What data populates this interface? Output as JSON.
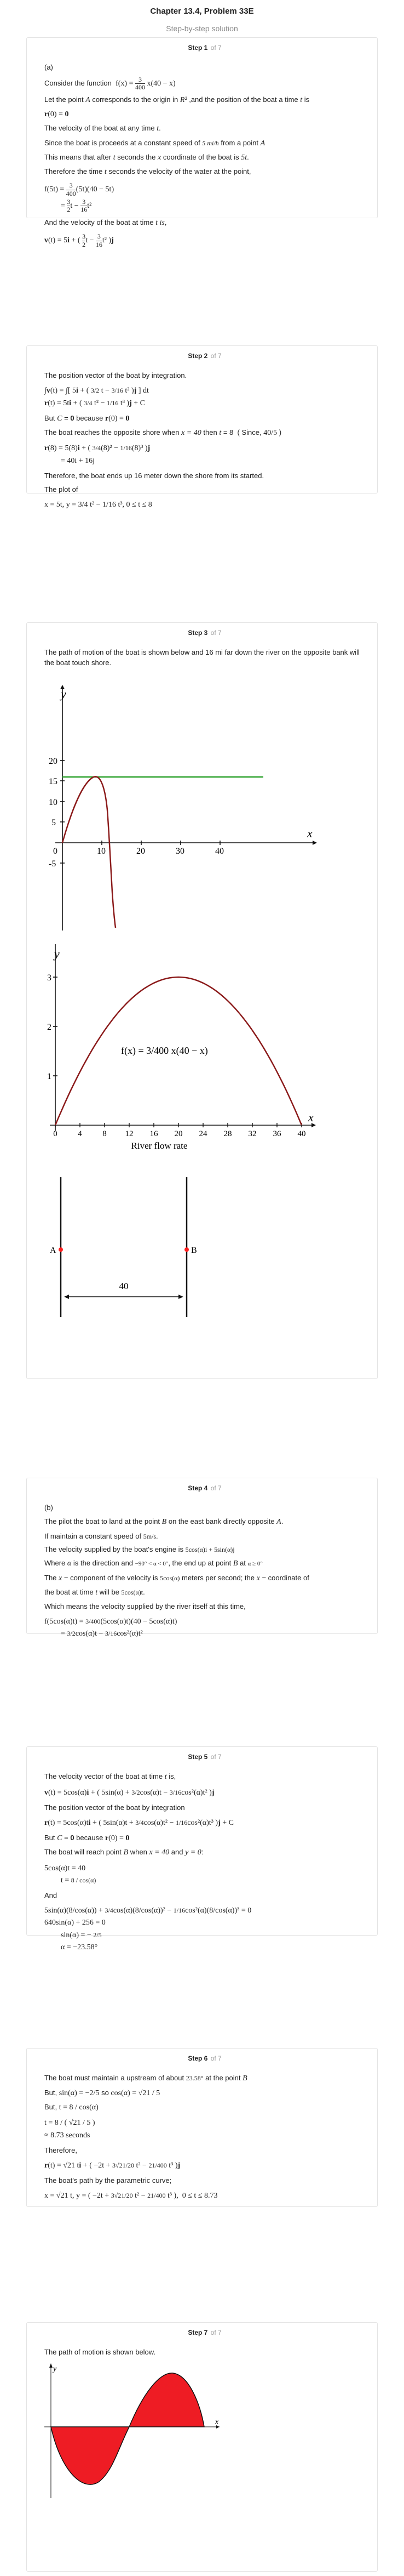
{
  "header": {
    "title": "Chapter 13.4, Problem 33E",
    "subtitle": "Step-by-step solution"
  },
  "steps": [
    {
      "label": "Step 1",
      "of": "of 7"
    },
    {
      "label": "Step 2",
      "of": "of 7"
    },
    {
      "label": "Step 3",
      "of": "of 7"
    },
    {
      "label": "Step 4",
      "of": "of 7"
    },
    {
      "label": "Step 5",
      "of": "of 7"
    },
    {
      "label": "Step 6",
      "of": "of 7"
    },
    {
      "label": "Step 7",
      "of": "of 7"
    }
  ],
  "step1": {
    "part": "(a)",
    "consider": "Consider the function",
    "fx": "f(x) = 3/400 x(40 − x)",
    "let_point": "Let the point",
    "let_rest1": "corresponds to the origin in",
    "let_rest2": ",and the position of the boat a time",
    "let_rest3": "is",
    "r0": "r(0) = 0",
    "velocity_any": "The velocity of the boat at any time",
    "since": "Since the boat is proceeds at a constant speed of",
    "speed": "5 mi/h",
    "from_point": "from a point",
    "means": "This means that after",
    "means2": "seconds the",
    "means3": "coordinate of the boat is",
    "therefore": "Therefore the time",
    "therefore2": "seconds the velocity of the water at the point,",
    "eq1": "f(5t) = 3/400 (5t)(40 − 5t)",
    "eq2": "= 3/2 t − 3/16 t²",
    "and_velocity": "And the velocity of the boat at time",
    "t_is": "t is,",
    "veq": "v(t) = 5i + (3/2 t − 3/16 t²) j"
  },
  "step2": {
    "pos_vec": "The position vector of the boat by integration.",
    "but_c": "But",
    "c_because": "because",
    "reaches": "The boat reaches the opposite shore when",
    "x40": "x = 40",
    "then": "then",
    "since": "Since,",
    "result": "= 40i + 16j",
    "ends": "Therefore, the boat ends up 16 meter down the shore from its started.",
    "plot_of": "The plot of",
    "param": "x = 5t, y = 3/4 t² − 1/16 t³,  0 ≤ t ≤ 8"
  },
  "step3": {
    "path_text": "The path of motion of the boat is shown below and 16 mi far down the river on the opposite bank will the boat touch shore.",
    "graph1": {
      "x_label": "x",
      "y_label": "y",
      "x_ticks": [
        "10",
        "20",
        "30",
        "40"
      ],
      "y_ticks": [
        "20",
        "15",
        "10",
        "5",
        "-5"
      ],
      "origin": "0"
    },
    "graph2": {
      "y_label": "y",
      "x_label": "x",
      "func": "f(x) = 3/400 x(40 − x)",
      "x_ticks": [
        "0",
        "4",
        "8",
        "12",
        "16",
        "20",
        "24",
        "28",
        "32",
        "36",
        "40"
      ],
      "y_ticks": [
        "3",
        "2",
        "1"
      ],
      "caption": "River flow rate"
    },
    "graph3": {
      "label_a": "A",
      "label_b": "B",
      "width": "40"
    }
  },
  "step4": {
    "part": "(b)",
    "pilot1": "The pilot the boat to land at the point",
    "pilot2": "on the east bank directly opposite",
    "maintain": "If maintain a constant speed of",
    "speed": "5m/s",
    "velocity_engine": "The velocity supplied by the boat's engine is",
    "engine_expr": "5cos(α)i + 5sin(α)j",
    "where": "Where",
    "where2": "is the direction and",
    "where3": ", the end up at point",
    "where4": "at",
    "x_comp": "The",
    "x_comp2": "component of the velocity is",
    "x_comp3": "meters per second; the",
    "x_comp4": "coordinate of",
    "boat_time": "the boat at time",
    "will_be": "will be",
    "which": "Which means the velocity supplied by the river itself at this time,"
  },
  "step5": {
    "vel_vec": "The velocity vector of the boat at time",
    "pos_vec": "The position vector of the boat by integration",
    "but": "But",
    "because": "because",
    "reach": "The boat will reach point",
    "when": "when",
    "and": "and",
    "and_label": "And",
    "alpha": "α = −23.58°"
  },
  "step6": {
    "must": "The boat must maintain a upstream of about",
    "angle": "23.58°",
    "at_point": "at the point",
    "but": "But,",
    "so": "so",
    "approx": "≈ 8.73 seconds",
    "therefore": "Therefore,",
    "path": "The boat's path by the parametric curve;",
    "range": "0 ≤ t ≤ 8.73"
  },
  "step7": {
    "path_text": "The path of motion is shown below.",
    "x_label": "x",
    "y_label": "y"
  },
  "colors": {
    "curve": "#8b1a1a",
    "line_green": "#2aa02a",
    "fill_red": "#ee1c24",
    "point_red": "#ff2020"
  }
}
